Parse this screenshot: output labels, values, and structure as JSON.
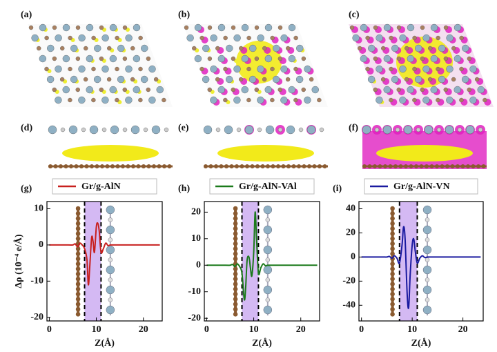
{
  "image_panels": [
    {
      "label": "(a)"
    },
    {
      "label": "(b)"
    },
    {
      "label": "(c)"
    },
    {
      "label": "(d)"
    },
    {
      "label": "(e)"
    },
    {
      "label": "(f)"
    }
  ],
  "chart_data": [
    {
      "type": "line",
      "panel_label": "(g)",
      "xlabel": "Z(Å)",
      "ylabel": "Δρ (10⁻⁴ e/Å)",
      "legend": "above",
      "x": [
        0,
        4,
        5,
        5.5,
        6,
        6.5,
        7,
        7.5,
        8,
        8.3,
        8.6,
        9,
        9.3,
        9.6,
        10,
        10.3,
        10.6,
        11,
        11.5,
        12,
        12.5,
        13,
        14,
        16,
        23.5
      ],
      "series": [
        {
          "name": "Gr/g-AlN",
          "color": "#c8201e",
          "values": [
            0,
            0,
            0,
            0.3,
            -0.5,
            0.5,
            0,
            -1,
            -4,
            -11,
            -6,
            2,
            1,
            -2,
            5,
            6,
            4,
            -2,
            -1,
            0.5,
            -0.2,
            0,
            0,
            0,
            0
          ]
        }
      ],
      "span": [
        7.5,
        11
      ],
      "xlim": [
        -0.5,
        24
      ],
      "xticks": [
        0,
        10,
        20
      ],
      "ylim": [
        -21,
        12
      ],
      "yticks": [
        -20,
        -10,
        0,
        10
      ]
    },
    {
      "type": "line",
      "panel_label": "(h)",
      "xlabel": "Z(Å)",
      "legend": "above",
      "x": [
        0,
        4,
        5,
        5.5,
        6,
        6.5,
        7,
        7.5,
        8,
        8.3,
        8.6,
        9,
        9.3,
        9.6,
        10,
        10.3,
        10.6,
        11,
        11.5,
        12,
        12.5,
        13,
        14,
        16,
        23.5
      ],
      "series": [
        {
          "name": "Gr/g-AlN-VAl",
          "color": "#1b7a1b",
          "values": [
            0,
            0,
            0,
            0.3,
            -0.5,
            0.5,
            -0.5,
            -3,
            -13,
            -8,
            2,
            3,
            -1,
            -4,
            5,
            20,
            10,
            -3,
            -1,
            0.5,
            -0.2,
            0,
            0,
            0,
            0
          ]
        }
      ],
      "span": [
        7.5,
        11
      ],
      "xlim": [
        -0.5,
        24
      ],
      "xticks": [
        0,
        10,
        20
      ],
      "ylim": [
        -21,
        24
      ],
      "yticks": [
        -20,
        -10,
        0,
        10,
        20
      ]
    },
    {
      "type": "line",
      "panel_label": "(i)",
      "xlabel": "Z(Å)",
      "legend": "above",
      "x": [
        0,
        4,
        5,
        5.5,
        6,
        6.5,
        7,
        7.5,
        8,
        8.3,
        8.6,
        9,
        9.3,
        9.6,
        10,
        10.3,
        10.6,
        11,
        11.5,
        12,
        12.5,
        13,
        14,
        16,
        23.5
      ],
      "series": [
        {
          "name": "Gr/g-AlN-VN",
          "color": "#1a1aa0",
          "values": [
            0,
            0,
            0,
            0.5,
            -1,
            1,
            -1,
            -5,
            10,
            25,
            15,
            -30,
            -42,
            -15,
            10,
            15,
            5,
            -5,
            -1,
            1,
            -0.5,
            0,
            0,
            0,
            0
          ]
        }
      ],
      "span": [
        7.5,
        11
      ],
      "xlim": [
        -0.5,
        24
      ],
      "xticks": [
        0,
        10,
        20
      ],
      "ylim": [
        -53,
        46
      ],
      "yticks": [
        -40,
        -20,
        0,
        20,
        40
      ]
    }
  ]
}
